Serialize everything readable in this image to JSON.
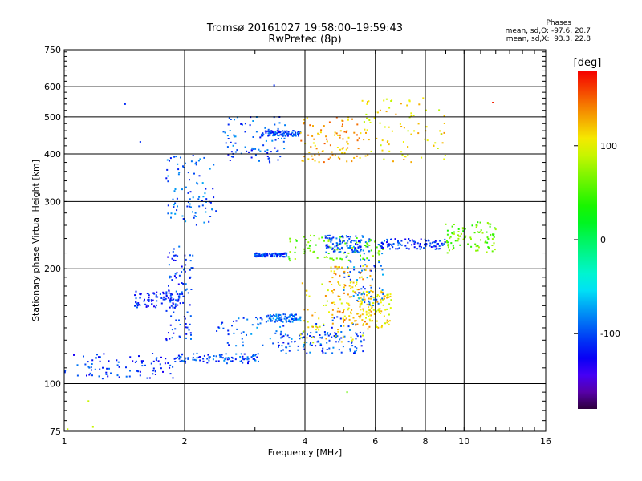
{
  "header": {
    "title_line1": "Tromsø 20161027 19:58:00–19:59:43",
    "title_line2": "RwPretec (8p)"
  },
  "stats": {
    "heading": "Phases",
    "o_line": "mean, sd,O: -97.6, 20.7",
    "x_line": "mean, sd,X:  93.3, 22.8"
  },
  "colorbar": {
    "label": "[deg]",
    "ticks": [
      {
        "value": 100,
        "label": "100"
      },
      {
        "value": 0,
        "label": "0"
      },
      {
        "value": -100,
        "label": "-100"
      }
    ],
    "range": [
      -180,
      180
    ]
  },
  "chart_data": {
    "type": "scatter",
    "title": "Tromsø 20161027 19:58:00–19:59:43",
    "subtitle": "RwPretec (8p)",
    "xlabel": "Frequency [MHz]",
    "ylabel": "Stationary phase Virtual Height [km]",
    "xscale": "log",
    "yscale": "log",
    "xlim": [
      1,
      16
    ],
    "ylim": [
      75,
      750
    ],
    "xticks": [
      {
        "value": 1,
        "label": "1"
      },
      {
        "value": 2,
        "label": "2"
      },
      {
        "value": 4,
        "label": "4"
      },
      {
        "value": 6,
        "label": "6"
      },
      {
        "value": 8,
        "label": "8"
      },
      {
        "value": 10,
        "label": "10"
      },
      {
        "value": 16,
        "label": "16"
      }
    ],
    "yticks": [
      {
        "value": 75,
        "label": "75"
      },
      {
        "value": 100,
        "label": "100"
      },
      {
        "value": 200,
        "label": "200"
      },
      {
        "value": 300,
        "label": "300"
      },
      {
        "value": 400,
        "label": "400"
      },
      {
        "value": 500,
        "label": "500"
      },
      {
        "value": 600,
        "label": "600"
      },
      {
        "value": 750,
        "label": "750"
      }
    ],
    "grid": true,
    "colorbar_label": "[deg]",
    "traces": [
      {
        "x_range": [
          1.0,
          1.9
        ],
        "y_range": [
          103,
          120
        ],
        "phase": -110
      },
      {
        "x_range": [
          1.5,
          1.95
        ],
        "y_range": [
          158,
          175
        ],
        "phase": -112
      },
      {
        "x_range": [
          1.8,
          2.1
        ],
        "y_range": [
          130,
          230
        ],
        "phase": -108
      },
      {
        "x_range": [
          1.9,
          3.1
        ],
        "y_range": [
          113,
          120
        ],
        "phase": -100
      },
      {
        "x_range": [
          2.4,
          5.5
        ],
        "y_range": [
          125,
          150
        ],
        "phase": -95
      },
      {
        "x_range": [
          3.2,
          3.9
        ],
        "y_range": [
          145,
          152
        ],
        "phase": -90
      },
      {
        "x_range": [
          3.4,
          5.7
        ],
        "y_range": [
          120,
          137
        ],
        "phase": -100
      },
      {
        "x_range": [
          3.9,
          5.8
        ],
        "y_range": [
          128,
          185
        ],
        "phase": 110
      },
      {
        "x_range": [
          4.6,
          5.9
        ],
        "y_range": [
          140,
          205
        ],
        "phase": 125
      },
      {
        "x_range": [
          5.4,
          6.6
        ],
        "y_range": [
          140,
          175
        ],
        "phase": 110
      },
      {
        "x_range": [
          5.0,
          6.3
        ],
        "y_range": [
          160,
          240
        ],
        "phase": -90
      },
      {
        "x_range": [
          1.8,
          2.4
        ],
        "y_range": [
          260,
          400
        ],
        "phase": -95
      },
      {
        "x_range": [
          2.5,
          3.6
        ],
        "y_range": [
          380,
          500
        ],
        "phase": -100
      },
      {
        "x_range": [
          3.1,
          3.9
        ],
        "y_range": [
          445,
          460
        ],
        "phase": -105
      },
      {
        "x_range": [
          3.9,
          5.5
        ],
        "y_range": [
          380,
          500
        ],
        "phase": 130
      },
      {
        "x_range": [
          3.0,
          3.6
        ],
        "y_range": [
          215,
          220
        ],
        "phase": -100
      },
      {
        "x_range": [
          3.6,
          6.3
        ],
        "y_range": [
          210,
          245
        ],
        "phase": 60
      },
      {
        "x_range": [
          4.5,
          5.6
        ],
        "y_range": [
          220,
          245
        ],
        "phase": -100
      },
      {
        "x_range": [
          6.2,
          9.0
        ],
        "y_range": [
          225,
          240
        ],
        "phase": -110
      },
      {
        "x_range": [
          9.0,
          12.0
        ],
        "y_range": [
          220,
          265
        ],
        "phase": 60
      },
      {
        "x_range": [
          5.5,
          9.0
        ],
        "y_range": [
          380,
          560
        ],
        "phase": 110
      }
    ],
    "isolated_points": [
      {
        "x": 1.42,
        "y": 540,
        "phase": -110
      },
      {
        "x": 1.55,
        "y": 430,
        "phase": -110
      },
      {
        "x": 3.35,
        "y": 605,
        "phase": -110
      },
      {
        "x": 7.9,
        "y": 560,
        "phase": 110
      },
      {
        "x": 11.8,
        "y": 545,
        "phase": 170
      },
      {
        "x": 5.1,
        "y": 95,
        "phase": 60
      },
      {
        "x": 1.15,
        "y": 90,
        "phase": 90
      },
      {
        "x": 1.18,
        "y": 77,
        "phase": 90
      },
      {
        "x": 1.02,
        "y": 76,
        "phase": 90
      }
    ]
  }
}
